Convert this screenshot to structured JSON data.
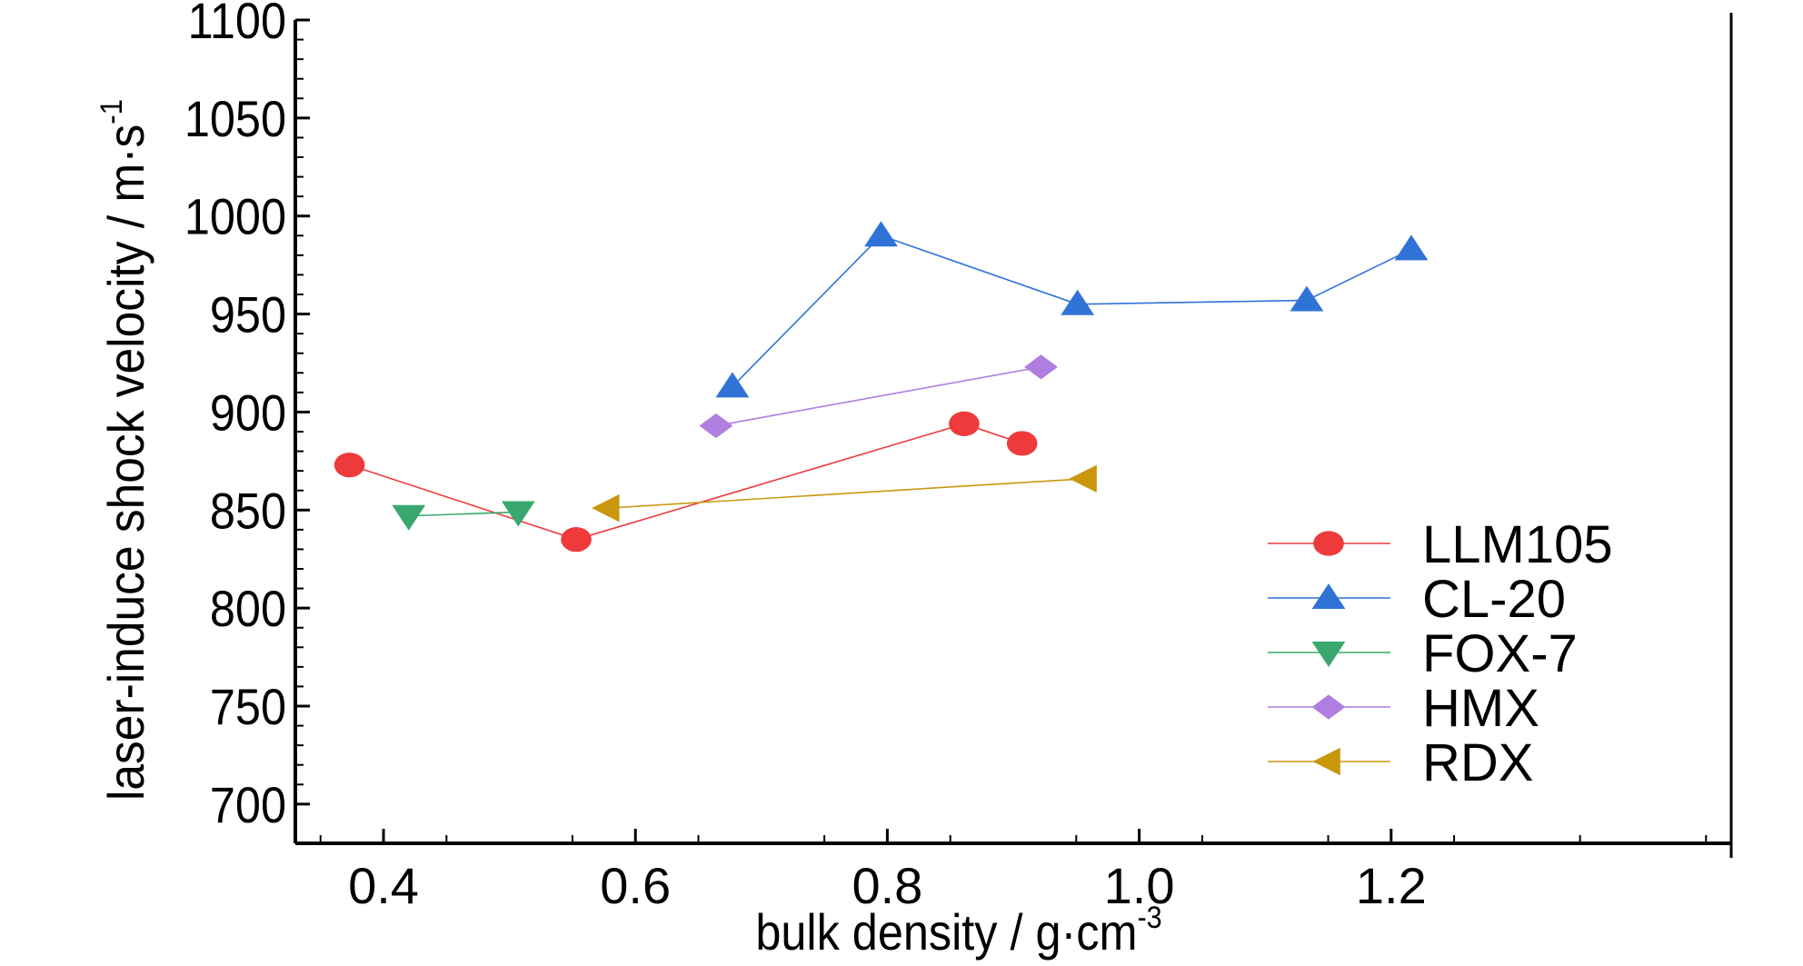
{
  "chart_data": {
    "type": "line",
    "title": "",
    "xlabel": "bulk density / g·cm",
    "xlabel_sup": "-3",
    "ylabel": "laser-induce shock velocity / m·s",
    "ylabel_sup": "-1",
    "xlim": [
      0.33,
      1.47
    ],
    "ylim": [
      680,
      1100
    ],
    "xticks": [
      0.4,
      0.6,
      0.8,
      1.0,
      1.2
    ],
    "xtick_labels": [
      "0.4",
      "0.6",
      "0.8",
      "1.0",
      "1.2"
    ],
    "yticks": [
      700,
      750,
      800,
      850,
      900,
      950,
      1000,
      1050,
      1100
    ],
    "ytick_labels": [
      "700",
      "750",
      "800",
      "850",
      "900",
      "950",
      "1000",
      "1050",
      "1100"
    ],
    "grid": false,
    "legend_position": "bottom-right",
    "series": [
      {
        "name": "LLM105",
        "color": "#ee3a3a",
        "marker": "circle",
        "x": [
          0.373,
          0.553,
          0.861,
          0.907
        ],
        "y": [
          873,
          835,
          894,
          884
        ]
      },
      {
        "name": "CL-20",
        "color": "#2f73d6",
        "marker": "triangle-up",
        "x": [
          0.677,
          0.795,
          0.951,
          1.133,
          1.216
        ],
        "y": [
          913,
          990,
          955,
          957,
          983
        ]
      },
      {
        "name": "FOX-7",
        "color": "#3aa86e",
        "marker": "triangle-down",
        "x": [
          0.42,
          0.507
        ],
        "y": [
          847,
          849
        ]
      },
      {
        "name": "HMX",
        "color": "#b07de0",
        "marker": "diamond",
        "x": [
          0.664,
          0.922
        ],
        "y": [
          893,
          923
        ]
      },
      {
        "name": "RDX",
        "color": "#c9970e",
        "marker": "triangle-left",
        "x": [
          0.578,
          0.957
        ],
        "y": [
          851,
          866
        ]
      }
    ]
  }
}
